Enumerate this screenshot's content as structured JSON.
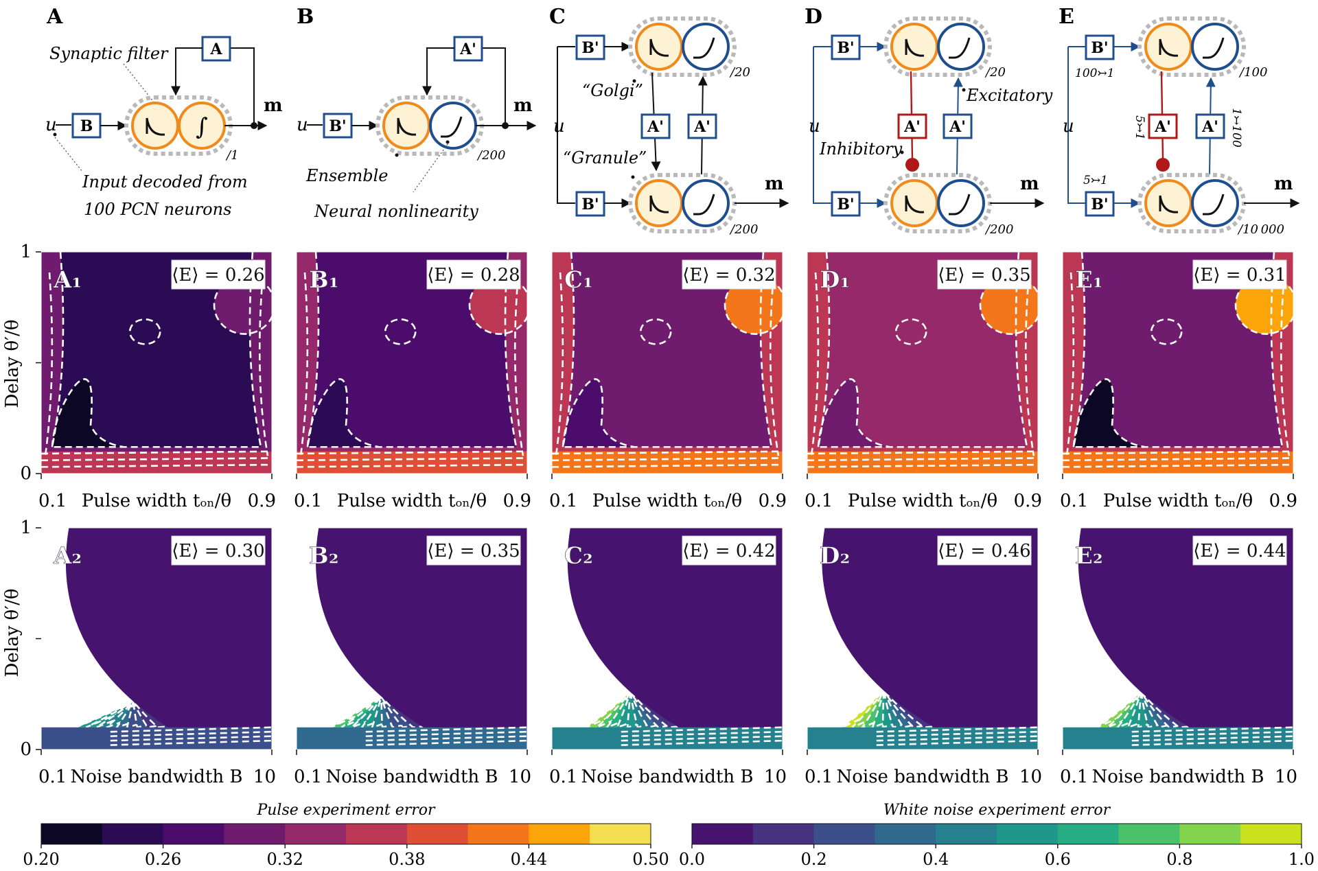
{
  "diagrams": {
    "A": {
      "letter": "A",
      "input_var": "u",
      "output_var": "m",
      "b_label": "B",
      "a_label": "A",
      "count": "/1",
      "annot_filter": "Synaptic filter",
      "annot_input_1": "Input decoded from",
      "annot_input_2": "100 PCN neurons"
    },
    "B": {
      "letter": "B",
      "input_var": "u",
      "output_var": "m",
      "b_label": "B'",
      "a_label": "A'",
      "count": "/200",
      "annot_ensemble": "Ensemble",
      "annot_nonlinearity": "Neural nonlinearity"
    },
    "C": {
      "letter": "C",
      "input_var": "u",
      "output_var": "m",
      "b_label": "B'",
      "a_label": "A'",
      "count_top": "/20",
      "count_bottom": "/200",
      "label_golgi": "“Golgi”",
      "label_granule": "“Granule”"
    },
    "D": {
      "letter": "D",
      "input_var": "u",
      "output_var": "m",
      "b_label": "B'",
      "a_label": "A'",
      "count_top": "/20",
      "count_bottom": "/200",
      "label_inhibitory": "Inhibitory",
      "label_excitatory": "Excitatory"
    },
    "E": {
      "letter": "E",
      "input_var": "u",
      "output_var": "m",
      "b_label": "B'",
      "a_label": "A'",
      "count_top": "/100",
      "count_bottom": "/10 000",
      "conv_top_in": "100↣1",
      "conv_bottom_in": "5↣1",
      "conv_inhib": "5↣1",
      "conv_excit": "1↣100"
    }
  },
  "row_labels": {
    "row1": [
      "A₁",
      "B₁",
      "C₁",
      "D₁",
      "E₁"
    ],
    "row2": [
      "A₂",
      "B₂",
      "C₂",
      "D₂",
      "E₂"
    ]
  },
  "mean_errors": {
    "row1": [
      "⟨E⟩ = 0.26",
      "⟨E⟩ = 0.28",
      "⟨E⟩ = 0.32",
      "⟨E⟩ = 0.35",
      "⟨E⟩ = 0.31"
    ],
    "row2": [
      "⟨E⟩ = 0.30",
      "⟨E⟩ = 0.35",
      "⟨E⟩ = 0.42",
      "⟨E⟩ = 0.46",
      "⟨E⟩ = 0.44"
    ]
  },
  "axes": {
    "y_label": "Delay θ′/θ",
    "y_ticks": [
      "0",
      "1"
    ],
    "row1_x_label": "Pulse width tₒₙ/θ",
    "row1_x_ticks": [
      "0.1",
      "0.9"
    ],
    "row2_x_label": "Noise bandwidth B",
    "row2_x_ticks": [
      "0.1",
      "10"
    ]
  },
  "colorbars": {
    "pulse": {
      "title": "Pulse experiment error",
      "ticks": [
        "0.20",
        "0.26",
        "0.32",
        "0.38",
        "0.44",
        "0.50"
      ],
      "colors": [
        "#0b0724",
        "#2a0b54",
        "#4c0c6b",
        "#6f1b6e",
        "#952969",
        "#bc3754",
        "#de4f36",
        "#f3761a",
        "#fca50a",
        "#f4df53"
      ]
    },
    "noise": {
      "title": "White noise experiment error",
      "ticks": [
        "0.0",
        "0.2",
        "0.4",
        "0.6",
        "0.8",
        "1.0"
      ],
      "colors": [
        "#46136e",
        "#45337f",
        "#3b4f8a",
        "#306a8e",
        "#26818e",
        "#1f988b",
        "#26ad81",
        "#49c26b",
        "#83d44c",
        "#cbe11e"
      ]
    }
  },
  "colors": {
    "orange": "#f08a1c",
    "navy": "#1f4e8e",
    "red": "#b01818",
    "cream": "#fdf2d4",
    "dash": "#b9b9b9"
  },
  "chart_data": [
    {
      "type": "heatmap",
      "title": "Pulse experiment error",
      "xlabel": "Pulse width t_on/θ",
      "ylabel": "Delay θ′/θ",
      "xlim": [
        0.1,
        0.9
      ],
      "ylim": [
        0,
        1
      ],
      "panels": [
        "A₁",
        "B₁",
        "C₁",
        "D₁",
        "E₁"
      ],
      "mean_error": [
        0.26,
        0.28,
        0.32,
        0.35,
        0.31
      ],
      "colorbar_range": [
        0.2,
        0.5
      ]
    },
    {
      "type": "heatmap",
      "title": "White noise experiment error",
      "xlabel": "Noise bandwidth B",
      "ylabel": "Delay θ′/θ",
      "xlim": [
        0.1,
        10
      ],
      "ylim": [
        0,
        1
      ],
      "panels": [
        "A₂",
        "B₂",
        "C₂",
        "D₂",
        "E₂"
      ],
      "mean_error": [
        0.3,
        0.35,
        0.42,
        0.46,
        0.44
      ],
      "colorbar_range": [
        0.0,
        1.0
      ]
    }
  ]
}
